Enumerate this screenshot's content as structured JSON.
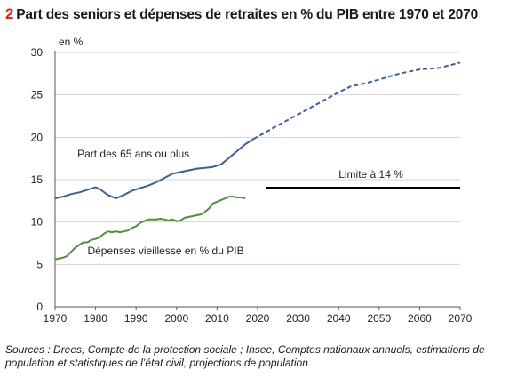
{
  "title_number": "2",
  "title_text": "Part des seniors et dépenses de retraites en % du PIB entre 1970 et 2070",
  "source": "Sources : Drees, Compte de la protection sociale ; Insee, Comptes nationaux annuels, estimations de population et statistiques de l’état civil, projections de population.",
  "chart_data": {
    "type": "line",
    "ylabel": "en %",
    "xlim": [
      1970,
      2070
    ],
    "ylim": [
      0,
      30
    ],
    "x_ticks": [
      1970,
      1980,
      1990,
      2000,
      2010,
      2020,
      2030,
      2040,
      2050,
      2060,
      2070
    ],
    "y_ticks": [
      0,
      5,
      10,
      15,
      20,
      25,
      30
    ],
    "grid": "horizontal",
    "series": [
      {
        "name": "Part des 65 ans ou plus",
        "color": "#3d5f98",
        "style": "solid",
        "points": [
          [
            1970,
            12.8
          ],
          [
            1972,
            13.0
          ],
          [
            1974,
            13.3
          ],
          [
            1976,
            13.5
          ],
          [
            1978,
            13.8
          ],
          [
            1980,
            14.1
          ],
          [
            1981,
            13.9
          ],
          [
            1983,
            13.2
          ],
          [
            1985,
            12.8
          ],
          [
            1987,
            13.2
          ],
          [
            1989,
            13.7
          ],
          [
            1991,
            14.0
          ],
          [
            1993,
            14.3
          ],
          [
            1995,
            14.7
          ],
          [
            1997,
            15.2
          ],
          [
            1999,
            15.7
          ],
          [
            2001,
            15.9
          ],
          [
            2003,
            16.1
          ],
          [
            2005,
            16.3
          ],
          [
            2007,
            16.4
          ],
          [
            2009,
            16.5
          ],
          [
            2011,
            16.8
          ],
          [
            2013,
            17.6
          ],
          [
            2015,
            18.4
          ],
          [
            2017,
            19.2
          ],
          [
            2019,
            19.8
          ]
        ]
      },
      {
        "name": "Part des 65 ans ou plus (projection)",
        "color": "#3d5f98",
        "style": "dashed",
        "points": [
          [
            2019,
            19.8
          ],
          [
            2025,
            21.4
          ],
          [
            2030,
            22.7
          ],
          [
            2035,
            24.0
          ],
          [
            2040,
            25.3
          ],
          [
            2043,
            26.0
          ],
          [
            2046,
            26.3
          ],
          [
            2050,
            26.8
          ],
          [
            2055,
            27.5
          ],
          [
            2060,
            28.0
          ],
          [
            2065,
            28.2
          ],
          [
            2070,
            28.8
          ]
        ]
      },
      {
        "name": "Dépenses vieillesse en % du PIB",
        "color": "#4f8f3a",
        "style": "solid",
        "points": [
          [
            1970,
            5.6
          ],
          [
            1971,
            5.7
          ],
          [
            1972,
            5.8
          ],
          [
            1973,
            6.0
          ],
          [
            1974,
            6.5
          ],
          [
            1975,
            7.0
          ],
          [
            1976,
            7.3
          ],
          [
            1977,
            7.6
          ],
          [
            1978,
            7.6
          ],
          [
            1979,
            7.9
          ],
          [
            1980,
            8.0
          ],
          [
            1981,
            8.2
          ],
          [
            1982,
            8.6
          ],
          [
            1983,
            8.9
          ],
          [
            1984,
            8.8
          ],
          [
            1985,
            8.9
          ],
          [
            1986,
            8.8
          ],
          [
            1987,
            8.9
          ],
          [
            1988,
            9.0
          ],
          [
            1989,
            9.3
          ],
          [
            1990,
            9.5
          ],
          [
            1991,
            9.9
          ],
          [
            1992,
            10.1
          ],
          [
            1993,
            10.3
          ],
          [
            1994,
            10.3
          ],
          [
            1995,
            10.3
          ],
          [
            1996,
            10.4
          ],
          [
            1997,
            10.3
          ],
          [
            1998,
            10.2
          ],
          [
            1999,
            10.3
          ],
          [
            2000,
            10.1
          ],
          [
            2001,
            10.2
          ],
          [
            2002,
            10.5
          ],
          [
            2003,
            10.6
          ],
          [
            2004,
            10.7
          ],
          [
            2005,
            10.8
          ],
          [
            2006,
            10.9
          ],
          [
            2007,
            11.2
          ],
          [
            2008,
            11.6
          ],
          [
            2009,
            12.2
          ],
          [
            2010,
            12.4
          ],
          [
            2011,
            12.6
          ],
          [
            2012,
            12.8
          ],
          [
            2013,
            13.0
          ],
          [
            2014,
            13.0
          ],
          [
            2015,
            12.9
          ],
          [
            2016,
            12.9
          ],
          [
            2017,
            12.8
          ]
        ]
      },
      {
        "name": "Limite à 14 %",
        "color": "#000000",
        "style": "solid-thick",
        "points": [
          [
            2022,
            14.0
          ],
          [
            2070,
            14.0
          ]
        ]
      }
    ],
    "annotations": [
      {
        "text": "Part des 65 ans ou plus",
        "x": 1975.5,
        "y": 17.6
      },
      {
        "text": "Dépenses vieillesse en % du PIB",
        "x": 1978,
        "y": 6.2
      },
      {
        "text": "Limite à 14 %",
        "x": 2040,
        "y": 15.2
      }
    ]
  }
}
